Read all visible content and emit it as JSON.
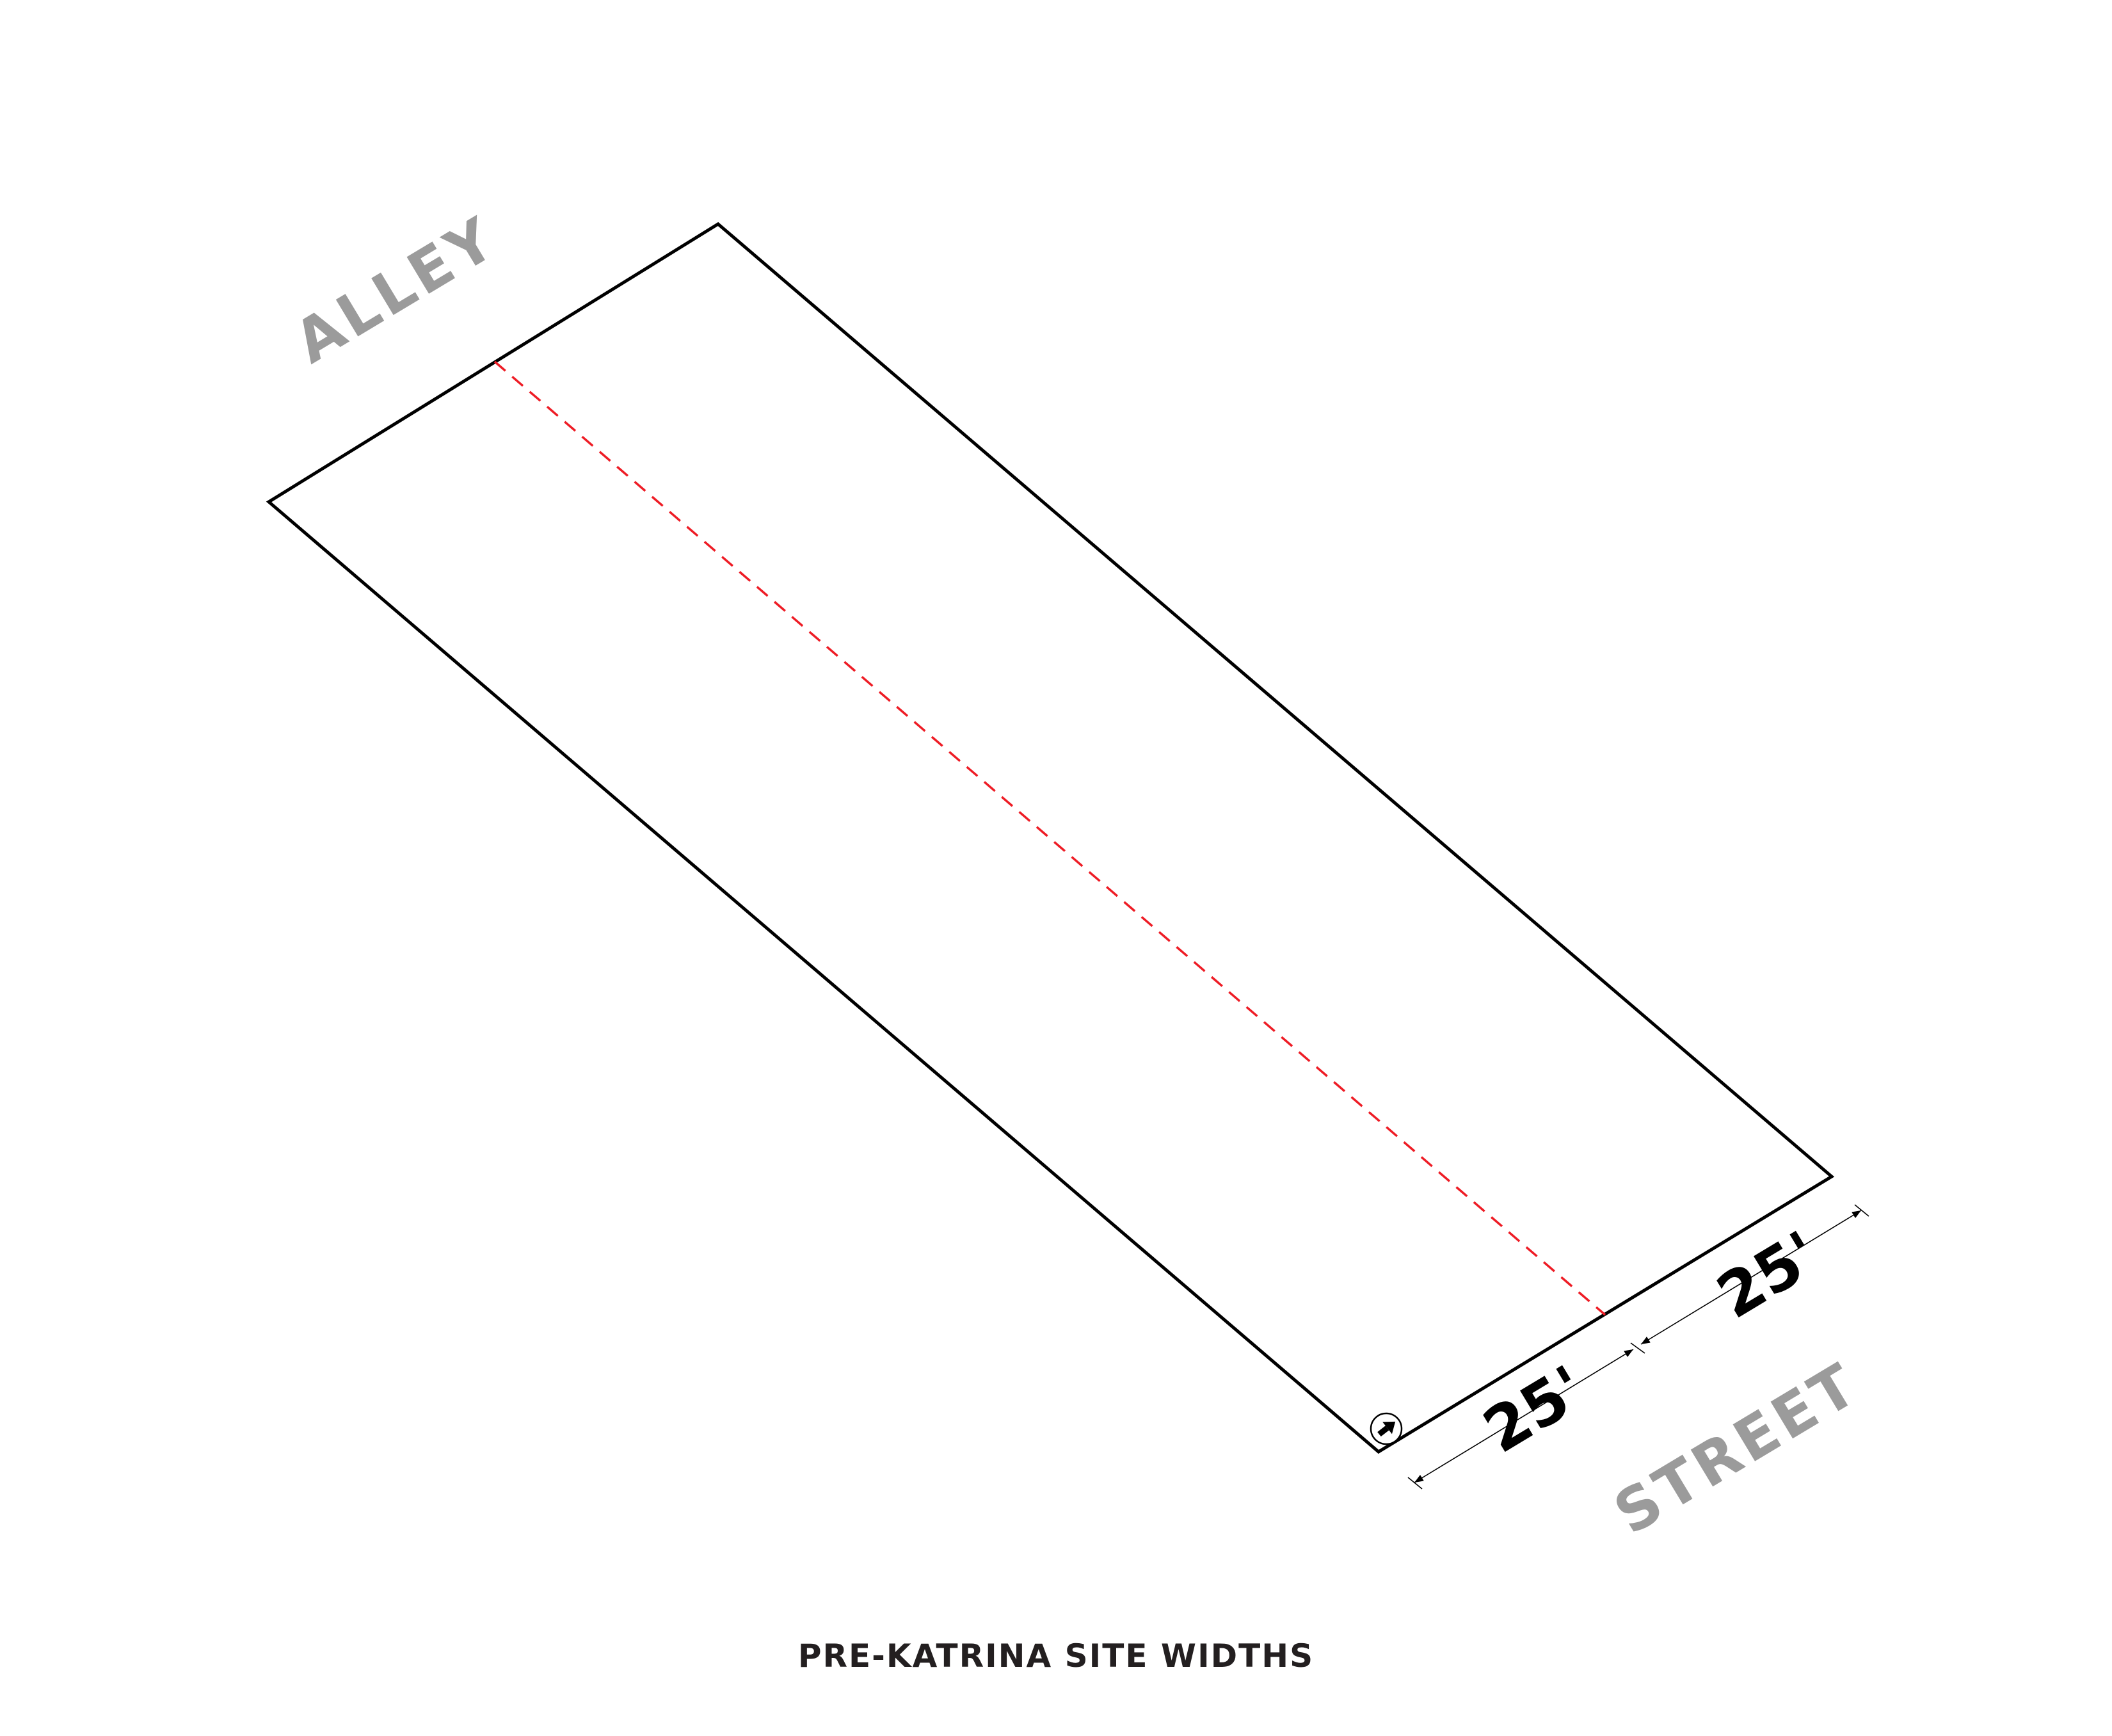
{
  "diagram": {
    "labels": {
      "alley": "ALLEY",
      "street": "STREET"
    },
    "dimensions": {
      "left_width": "25'",
      "right_width": "25'"
    },
    "caption": "PRE-KATRINA SITE WIDTHS",
    "icons": {
      "north_arrow": "north-arrow-icon"
    },
    "colors": {
      "outline": "#000000",
      "lot_division_line": "#ee1c25",
      "street_label": "#9b9b9b",
      "caption": "#231f20"
    }
  }
}
